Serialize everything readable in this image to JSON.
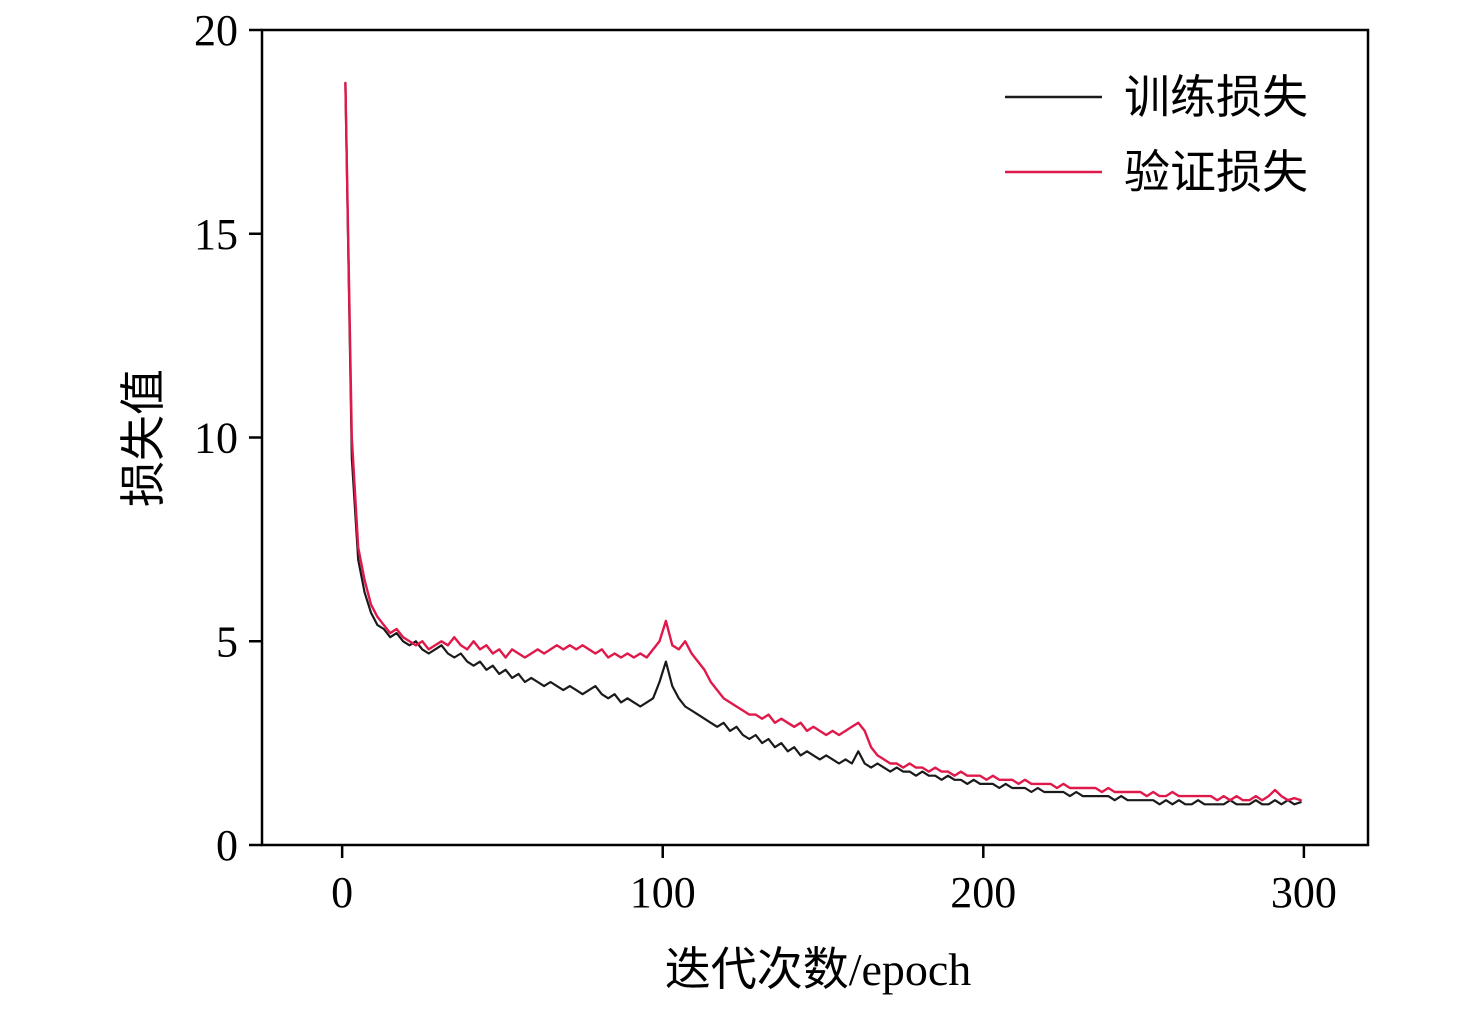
{
  "chart_data": {
    "type": "line",
    "title": "",
    "xlabel": "迭代次数/epoch",
    "ylabel": "损失值",
    "xlim": [
      -25,
      320
    ],
    "ylim": [
      0,
      20
    ],
    "xticks": [
      0,
      100,
      200,
      300
    ],
    "yticks": [
      0,
      5,
      10,
      15,
      20
    ],
    "grid": false,
    "legend_position": "top-right",
    "axis_color": "#000000",
    "background": "#ffffff",
    "x": [
      1,
      3,
      5,
      7,
      9,
      11,
      13,
      15,
      17,
      19,
      21,
      23,
      25,
      27,
      29,
      31,
      33,
      35,
      37,
      39,
      41,
      43,
      45,
      47,
      49,
      51,
      53,
      55,
      57,
      59,
      61,
      63,
      65,
      67,
      69,
      71,
      73,
      75,
      77,
      79,
      81,
      83,
      85,
      87,
      89,
      91,
      93,
      95,
      97,
      99,
      101,
      103,
      105,
      107,
      109,
      111,
      113,
      115,
      117,
      119,
      121,
      123,
      125,
      127,
      129,
      131,
      133,
      135,
      137,
      139,
      141,
      143,
      145,
      147,
      149,
      151,
      153,
      155,
      157,
      159,
      161,
      163,
      165,
      167,
      169,
      171,
      173,
      175,
      177,
      179,
      181,
      183,
      185,
      187,
      189,
      191,
      193,
      195,
      197,
      199,
      201,
      203,
      205,
      207,
      209,
      211,
      213,
      215,
      217,
      219,
      221,
      223,
      225,
      227,
      229,
      231,
      233,
      235,
      237,
      239,
      241,
      243,
      245,
      247,
      249,
      251,
      253,
      255,
      257,
      259,
      261,
      263,
      265,
      267,
      269,
      271,
      273,
      275,
      277,
      279,
      281,
      283,
      285,
      287,
      289,
      291,
      293,
      295,
      297,
      299
    ],
    "series": [
      {
        "name": "训练损失",
        "color": "#1a1a1a",
        "values": [
          18.7,
          9.5,
          7.0,
          6.2,
          5.7,
          5.4,
          5.3,
          5.1,
          5.2,
          5.0,
          4.9,
          5.0,
          4.8,
          4.7,
          4.8,
          4.9,
          4.7,
          4.6,
          4.7,
          4.5,
          4.4,
          4.5,
          4.3,
          4.4,
          4.2,
          4.3,
          4.1,
          4.2,
          4.0,
          4.1,
          4.0,
          3.9,
          4.0,
          3.9,
          3.8,
          3.9,
          3.8,
          3.7,
          3.8,
          3.9,
          3.7,
          3.6,
          3.7,
          3.5,
          3.6,
          3.5,
          3.4,
          3.5,
          3.6,
          4.0,
          4.5,
          3.9,
          3.6,
          3.4,
          3.3,
          3.2,
          3.1,
          3.0,
          2.9,
          3.0,
          2.8,
          2.9,
          2.7,
          2.6,
          2.7,
          2.5,
          2.6,
          2.4,
          2.5,
          2.3,
          2.4,
          2.2,
          2.3,
          2.2,
          2.1,
          2.2,
          2.1,
          2.0,
          2.1,
          2.0,
          2.3,
          2.0,
          1.9,
          2.0,
          1.9,
          1.8,
          1.9,
          1.8,
          1.8,
          1.7,
          1.8,
          1.7,
          1.7,
          1.6,
          1.7,
          1.6,
          1.6,
          1.5,
          1.6,
          1.5,
          1.5,
          1.5,
          1.4,
          1.5,
          1.4,
          1.4,
          1.4,
          1.3,
          1.4,
          1.3,
          1.3,
          1.3,
          1.3,
          1.2,
          1.3,
          1.2,
          1.2,
          1.2,
          1.2,
          1.2,
          1.1,
          1.2,
          1.1,
          1.1,
          1.1,
          1.1,
          1.1,
          1.0,
          1.1,
          1.0,
          1.1,
          1.0,
          1.0,
          1.1,
          1.0,
          1.0,
          1.0,
          1.0,
          1.1,
          1.0,
          1.0,
          1.0,
          1.1,
          1.0,
          1.0,
          1.1,
          1.0,
          1.1,
          1.0,
          1.05
        ]
      },
      {
        "name": "验证损失",
        "color": "#e0194b",
        "values": [
          18.7,
          10.0,
          7.3,
          6.5,
          5.9,
          5.6,
          5.4,
          5.2,
          5.3,
          5.1,
          5.0,
          4.9,
          5.0,
          4.8,
          4.9,
          5.0,
          4.9,
          5.1,
          4.9,
          4.8,
          5.0,
          4.8,
          4.9,
          4.7,
          4.8,
          4.6,
          4.8,
          4.7,
          4.6,
          4.7,
          4.8,
          4.7,
          4.8,
          4.9,
          4.8,
          4.9,
          4.8,
          4.9,
          4.8,
          4.7,
          4.8,
          4.6,
          4.7,
          4.6,
          4.7,
          4.6,
          4.7,
          4.6,
          4.8,
          5.0,
          5.5,
          4.9,
          4.8,
          5.0,
          4.7,
          4.5,
          4.3,
          4.0,
          3.8,
          3.6,
          3.5,
          3.4,
          3.3,
          3.2,
          3.2,
          3.1,
          3.2,
          3.0,
          3.1,
          3.0,
          2.9,
          3.0,
          2.8,
          2.9,
          2.8,
          2.7,
          2.8,
          2.7,
          2.8,
          2.9,
          3.0,
          2.8,
          2.4,
          2.2,
          2.1,
          2.0,
          2.0,
          1.9,
          2.0,
          1.9,
          1.9,
          1.8,
          1.9,
          1.8,
          1.8,
          1.7,
          1.8,
          1.7,
          1.7,
          1.7,
          1.6,
          1.7,
          1.6,
          1.6,
          1.6,
          1.5,
          1.6,
          1.5,
          1.5,
          1.5,
          1.5,
          1.4,
          1.5,
          1.4,
          1.4,
          1.4,
          1.4,
          1.4,
          1.3,
          1.4,
          1.3,
          1.3,
          1.3,
          1.3,
          1.3,
          1.2,
          1.3,
          1.2,
          1.2,
          1.3,
          1.2,
          1.2,
          1.2,
          1.2,
          1.2,
          1.2,
          1.1,
          1.2,
          1.1,
          1.2,
          1.1,
          1.1,
          1.2,
          1.1,
          1.2,
          1.35,
          1.2,
          1.1,
          1.15,
          1.1
        ]
      }
    ]
  }
}
